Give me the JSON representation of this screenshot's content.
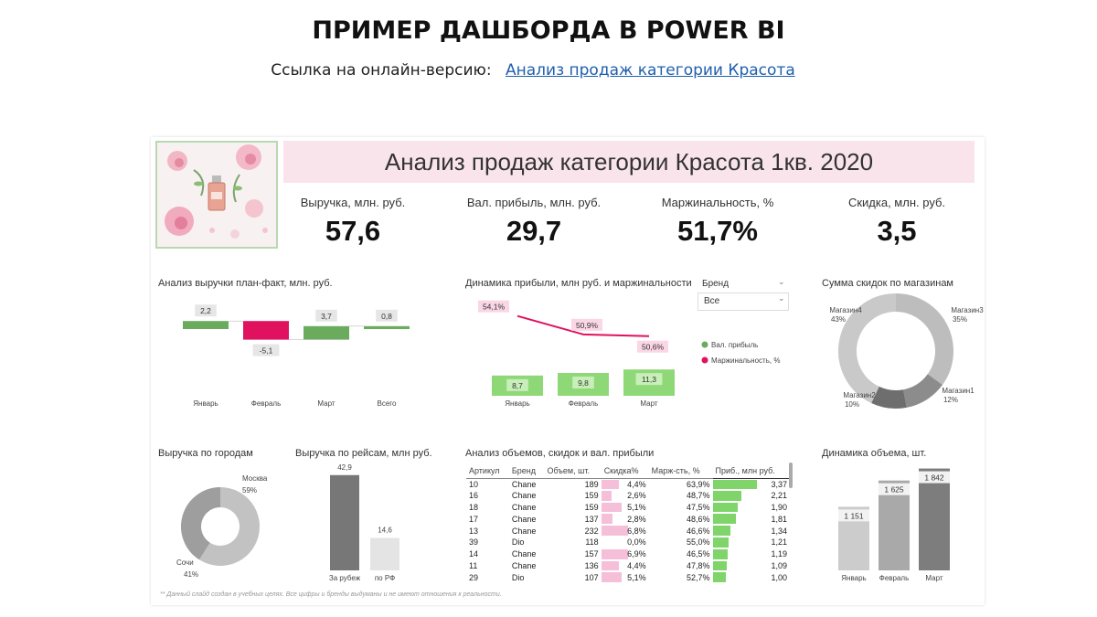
{
  "slide": {
    "title": "ПРИМЕР ДАШБОРДА В POWER BI",
    "link_prefix": "Ссылка на онлайн-версию:",
    "link_text": "Анализ продаж категории Красота"
  },
  "dashboard": {
    "title": "Анализ продаж категории Красота 1кв. 2020",
    "footnote": "** Данный слайд создан в учебных целях. Все цифры и бренды выдуманы и не имеют отношения к реальности."
  },
  "kpis": [
    {
      "label": "Выручка, млн. руб.",
      "value": "57,6"
    },
    {
      "label": "Вал. прибыль, млн. руб.",
      "value": "29,7"
    },
    {
      "label": "Маржинальность, %",
      "value": "51,7%"
    },
    {
      "label": "Скидка, млн. руб.",
      "value": "3,5"
    }
  ],
  "panels": {
    "waterfall": "Анализ выручки план-факт, млн. руб.",
    "profit": "Динамика прибыли, млн руб. и маржинальности",
    "discount_donut": "Сумма скидок по магазинам",
    "cities": "Выручка по городам",
    "flights": "Выручка по рейсам, млн руб.",
    "table": "Анализ объемов, скидок и вал. прибыли",
    "volume": "Динамика объема, шт."
  },
  "slicer": {
    "label": "Бренд",
    "value": "Все"
  },
  "colors": {
    "green": "#6aab5e",
    "pink": "#e0115f",
    "light_green": "#8fd877",
    "bar_green": "#7fd46a",
    "pink_light": "#f6bfd9"
  },
  "chart_data": [
    {
      "type": "bar",
      "title": "Анализ выручки план-факт, млн. руб.",
      "categories": [
        "Январь",
        "Февраль",
        "Март",
        "Всего"
      ],
      "values": [
        2.2,
        -5.1,
        3.7,
        0.8
      ],
      "labels": [
        "2,2",
        "-5,1",
        "3,7",
        "0,8"
      ]
    },
    {
      "type": "bar",
      "title": "Динамика прибыли, млн руб. и маржинальности",
      "categories": [
        "Январь",
        "Февраль",
        "Март"
      ],
      "series": [
        {
          "name": "Вал. прибыль",
          "values": [
            8.7,
            9.8,
            11.3
          ],
          "labels": [
            "8,7",
            "9,8",
            "11,3"
          ]
        },
        {
          "name": "Маржинальность, %",
          "values": [
            54.1,
            50.9,
            50.6
          ],
          "labels": [
            "54,1%",
            "50,9%",
            "50,6%"
          ]
        }
      ]
    },
    {
      "type": "pie",
      "title": "Сумма скидок по магазинам",
      "slices": [
        {
          "name": "Магазин4",
          "value": 43,
          "label": "43%",
          "color": "#c9c9c9"
        },
        {
          "name": "Магазин3",
          "value": 35,
          "label": "35%",
          "color": "#bdbdbd"
        },
        {
          "name": "Магазин1",
          "value": 12,
          "label": "12%",
          "color": "#8c8c8c"
        },
        {
          "name": "Магазин2",
          "value": 10,
          "label": "10%",
          "color": "#6e6e6e"
        }
      ]
    },
    {
      "type": "pie",
      "title": "Выручка по городам",
      "slices": [
        {
          "name": "Москва",
          "value": 59,
          "label": "59%",
          "color": "#c2c2c2"
        },
        {
          "name": "Сочи",
          "value": 41,
          "label": "41%",
          "color": "#9e9e9e"
        }
      ]
    },
    {
      "type": "bar",
      "title": "Выручка по рейсам, млн руб.",
      "categories": [
        "За рубеж",
        "по РФ"
      ],
      "values": [
        42.9,
        14.6
      ],
      "labels": [
        "42,9",
        "14,6"
      ]
    },
    {
      "type": "table",
      "title": "Анализ объемов, скидок и вал. прибыли",
      "columns": [
        "Артикул",
        "Бренд",
        "Объем, шт.",
        "Скидка%",
        "Марж-сть, %",
        "Приб., млн руб."
      ],
      "rows": [
        [
          "10",
          "Chane",
          "189",
          "4,4%",
          "63,9%",
          "3,37"
        ],
        [
          "16",
          "Chane",
          "159",
          "2,6%",
          "48,7%",
          "2,21"
        ],
        [
          "18",
          "Chane",
          "159",
          "5,1%",
          "47,5%",
          "1,90"
        ],
        [
          "17",
          "Chane",
          "137",
          "2,8%",
          "48,6%",
          "1,81"
        ],
        [
          "13",
          "Chane",
          "232",
          "6,8%",
          "46,6%",
          "1,34"
        ],
        [
          "39",
          "Dio",
          "118",
          "0,0%",
          "55,0%",
          "1,21"
        ],
        [
          "14",
          "Chane",
          "157",
          "6,9%",
          "46,5%",
          "1,19"
        ],
        [
          "11",
          "Chane",
          "136",
          "4,4%",
          "47,8%",
          "1,09"
        ],
        [
          "29",
          "Dio",
          "107",
          "5,1%",
          "52,7%",
          "1,00"
        ]
      ]
    },
    {
      "type": "bar",
      "title": "Динамика объема, шт.",
      "categories": [
        "Январь",
        "Февраль",
        "Март"
      ],
      "values": [
        1151,
        1625,
        1842
      ],
      "labels": [
        "1 151",
        "1 625",
        "1 842"
      ]
    }
  ]
}
